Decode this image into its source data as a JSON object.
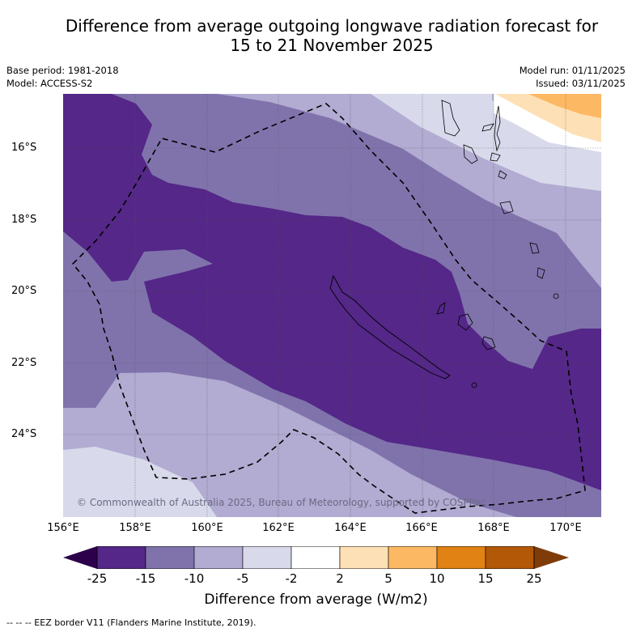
{
  "title": {
    "line1": "Difference from average outgoing longwave radiation forecast for",
    "line2": "15 to 21 November 2025"
  },
  "meta_left": {
    "base_period": "Base period: 1981-2018",
    "model": "Model: ACCESS-S2"
  },
  "meta_right": {
    "model_run": "Model run: 01/11/2025",
    "issued": "Issued: 03/11/2025"
  },
  "map": {
    "lon_range": [
      156,
      171
    ],
    "lat_range": [
      -14.7,
      -26.5
    ],
    "y_ticks": [
      "16°S",
      "18°S",
      "20°S",
      "22°S",
      "24°S"
    ],
    "x_ticks": [
      "156°E",
      "158°E",
      "160°E",
      "162°E",
      "164°E",
      "166°E",
      "168°E",
      "170°E"
    ],
    "copyright": "© Commonwealth of Australia 2025, Bureau of Meteorology, supported by COSPPac",
    "features": [
      "New Caledonia coastline",
      "Vanuatu coastline",
      "Loyalty Islands",
      "EEZ border (dashed)"
    ]
  },
  "colorbar": {
    "title": "Difference from average (W/m2)",
    "labels": [
      "-25",
      "-15",
      "-10",
      "-5",
      "-2",
      "2",
      "5",
      "10",
      "15",
      "25"
    ],
    "under_color": "#2d004b",
    "over_color": "#7f3b08",
    "colors": [
      "#542788",
      "#8073ac",
      "#b2abd2",
      "#d8daeb",
      "#ffffff",
      "#fee0b6",
      "#fdb863",
      "#e08214",
      "#b35806"
    ]
  },
  "footnote": "--  --  -- EEZ border V11 (Flanders Marine Institute, 2019)."
}
